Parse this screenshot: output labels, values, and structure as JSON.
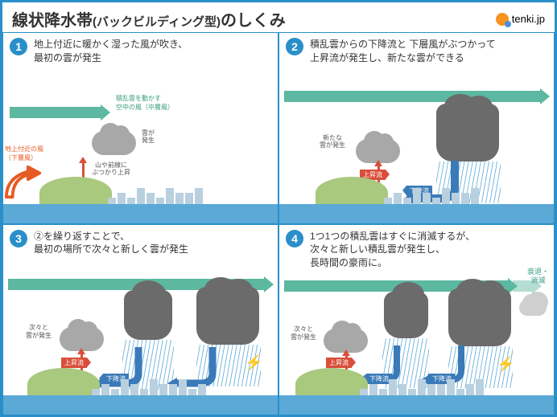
{
  "title_main": "線状降水帯",
  "title_sub": "(バックビルディング型)",
  "title_tail": "のしくみ",
  "logo_text": "tenki.jp",
  "panels": [
    {
      "num": "1",
      "text": "地上付近に暖かく湿った風が吹き、\n最初の雲が発生"
    },
    {
      "num": "2",
      "text": "積乱雲からの下降流と 下層風がぶつかって\n上昇流が発生し、新たな雲ができる"
    },
    {
      "num": "3",
      "text": "②を繰り返すことで、\n最初の場所で次々と新しく雲が発生"
    },
    {
      "num": "4",
      "text": "1つ1つの積乱雲はすぐに消滅するが、\n次々と新しい積乱雲が発生し、\n長時間の豪雨に。"
    }
  ],
  "labels": {
    "mid_wind": "積乱雲を動かす\n空中の風（中層風）",
    "low_wind": "地上付近の風\n（下層風）",
    "cloud_first": "雲が\n発生",
    "mountain": "山や前線に\nぶつかり上昇",
    "new_cloud": "新たな\n雲が発生",
    "updraft": "上昇流",
    "downdraft": "下降流",
    "low_layer": "下層風",
    "repeat_cloud": "次々と\n雲が発生",
    "decay": "衰退・\n消滅"
  },
  "colors": {
    "border": "#2a8fc9",
    "badge": "#2a8fc9",
    "mid_wind": "#5cb8a0",
    "low_wind": "#e75a24",
    "sea": "#5aa9d6",
    "hill": "#a8c97e",
    "cloud_light": "#a8a8a8",
    "cloud_dark": "#6b6b6b",
    "red_tag": "#d94f3a",
    "blue_tag": "#3a7ab8",
    "bolt": "#ffd633"
  }
}
